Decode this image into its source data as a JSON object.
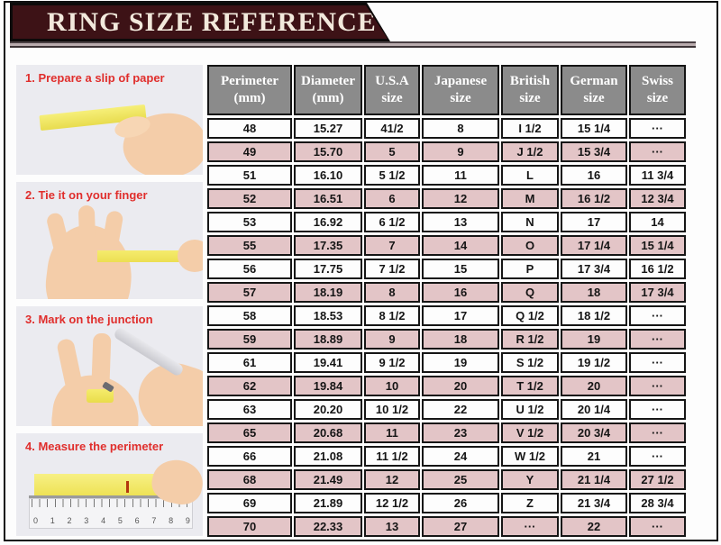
{
  "title": "RING SIZE REFERENCE",
  "steps": [
    {
      "label": "1. Prepare a slip of paper"
    },
    {
      "label": "2. Tie it on your finger"
    },
    {
      "label": "3. Mark on the junction"
    },
    {
      "label": "4. Measure the perimeter"
    }
  ],
  "ruler_numbers": "0 1 2 3 4 5 6 7 8 9",
  "colors": {
    "banner_bg": "#3d1216",
    "banner_text": "#f2e9dc",
    "step_label_red": "#e02e2c",
    "table_header_gray": "#8b8b8b",
    "row_pink": "#e3c5c7",
    "row_white": "#fdfdfd",
    "paper_yellow": "#f2e85e",
    "border_black": "#141414"
  },
  "chart_data": {
    "type": "table",
    "title": "RING SIZE REFERENCE",
    "columns": [
      "Perimeter\n(mm)",
      "Diameter\n(mm)",
      "U.S.A\nsize",
      "Japanese\nsize",
      "British\nsize",
      "German\nsize",
      "Swiss\nsize"
    ],
    "rows": [
      [
        "48",
        "15.27",
        "41/2",
        "8",
        "I 1/2",
        "15 1/4",
        "···"
      ],
      [
        "49",
        "15.70",
        "5",
        "9",
        "J 1/2",
        "15 3/4",
        "···"
      ],
      [
        "51",
        "16.10",
        "5 1/2",
        "11",
        "L",
        "16",
        "11 3/4"
      ],
      [
        "52",
        "16.51",
        "6",
        "12",
        "M",
        "16 1/2",
        "12 3/4"
      ],
      [
        "53",
        "16.92",
        "6 1/2",
        "13",
        "N",
        "17",
        "14"
      ],
      [
        "55",
        "17.35",
        "7",
        "14",
        "O",
        "17 1/4",
        "15 1/4"
      ],
      [
        "56",
        "17.75",
        "7 1/2",
        "15",
        "P",
        "17 3/4",
        "16 1/2"
      ],
      [
        "57",
        "18.19",
        "8",
        "16",
        "Q",
        "18",
        "17 3/4"
      ],
      [
        "58",
        "18.53",
        "8 1/2",
        "17",
        "Q 1/2",
        "18 1/2",
        "···"
      ],
      [
        "59",
        "18.89",
        "9",
        "18",
        "R 1/2",
        "19",
        "···"
      ],
      [
        "61",
        "19.41",
        "9 1/2",
        "19",
        "S 1/2",
        "19 1/2",
        "···"
      ],
      [
        "62",
        "19.84",
        "10",
        "20",
        "T 1/2",
        "20",
        "···"
      ],
      [
        "63",
        "20.20",
        "10 1/2",
        "22",
        "U 1/2",
        "20 1/4",
        "···"
      ],
      [
        "65",
        "20.68",
        "11",
        "23",
        "V 1/2",
        "20 3/4",
        "···"
      ],
      [
        "66",
        "21.08",
        "11 1/2",
        "24",
        "W 1/2",
        "21",
        "···"
      ],
      [
        "68",
        "21.49",
        "12",
        "25",
        "Y",
        "21 1/4",
        "27 1/2"
      ],
      [
        "69",
        "21.89",
        "12 1/2",
        "26",
        "Z",
        "21 3/4",
        "28 3/4"
      ],
      [
        "70",
        "22.33",
        "13",
        "27",
        "···",
        "22",
        "···"
      ]
    ]
  }
}
